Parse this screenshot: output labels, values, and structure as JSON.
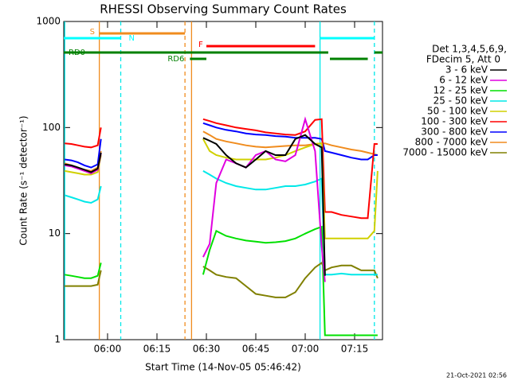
{
  "chart_data": {
    "type": "line",
    "title": "RHESSI Observing Summary Count Rates",
    "xlabel": "Start Time (14-Nov-05 05:46:42)",
    "ylabel": "Count Rate (s⁻¹ detector⁻¹)",
    "footer": "21-Oct-2021 02:56",
    "legend_header": [
      "Det 1,3,4,5,6,9,",
      "FDecim 5, Att 0"
    ],
    "log_y": true,
    "xlim": [
      "05:46:42",
      "07:23:28"
    ],
    "xticks": [
      "06:00",
      "06:15",
      "06:30",
      "06:45",
      "07:00",
      "07:15"
    ],
    "ylim": [
      1,
      1000
    ],
    "yticks": [
      1,
      10,
      100,
      1000
    ],
    "x": [
      "05:47",
      "05:49",
      "05:51",
      "05:53",
      "05:55",
      "05:57",
      "05:58",
      "06:10",
      "06:29",
      "06:31",
      "06:33",
      "06:36",
      "06:39",
      "06:42",
      "06:45",
      "06:48",
      "06:51",
      "06:54",
      "06:57",
      "07:00",
      "07:03",
      "07:05",
      "07:06",
      "07:08",
      "07:11",
      "07:14",
      "07:17",
      "07:19",
      "07:21",
      "07:22"
    ],
    "series": [
      {
        "name": "3 - 6 keV",
        "color": "#000000",
        "values": [
          45,
          44,
          42,
          40,
          38,
          41,
          58,
          null,
          80,
          75,
          70,
          55,
          46,
          42,
          50,
          60,
          55,
          55,
          78,
          85,
          70,
          65,
          4,
          null,
          null,
          null,
          null,
          null,
          null,
          null
        ]
      },
      {
        "name": "6 - 12 keV",
        "color": "#e000e0",
        "values": [
          44,
          43,
          41,
          39,
          37,
          40,
          57,
          null,
          6,
          8,
          30,
          50,
          46,
          42,
          55,
          60,
          50,
          48,
          55,
          120,
          60,
          7.5,
          3.5,
          null,
          null,
          null,
          null,
          null,
          null,
          null
        ]
      },
      {
        "name": "12 - 25 keV",
        "color": "#00e000",
        "values": [
          4.1,
          4,
          3.9,
          3.8,
          3.8,
          4,
          5.3,
          null,
          4.1,
          7,
          10.6,
          9.5,
          9,
          8.6,
          8.4,
          8.2,
          8.3,
          8.5,
          9,
          10,
          11,
          11.6,
          1.1,
          1.1,
          1.1,
          1.1,
          1.1,
          1.1,
          1.1,
          1.1
        ]
      },
      {
        "name": "25 - 50 keV",
        "color": "#00e8e8",
        "values": [
          23,
          22,
          21,
          20,
          19.5,
          21,
          28,
          null,
          39,
          36,
          33,
          30,
          28,
          27,
          26,
          26,
          27,
          28,
          28,
          29,
          31,
          33,
          4.1,
          4.1,
          4.2,
          4.1,
          4.1,
          4.1,
          4.1,
          4.1
        ]
      },
      {
        "name": "50 - 100 keV",
        "color": "#d0d000",
        "values": [
          39,
          38,
          37,
          36,
          36,
          38,
          55,
          null,
          78,
          60,
          55,
          52,
          50,
          50,
          50,
          50,
          52,
          55,
          60,
          65,
          70,
          71,
          9,
          9,
          9,
          9,
          9,
          9,
          10.6,
          39
        ]
      },
      {
        "name": "100 - 300 keV",
        "color": "#ff0000",
        "values": [
          71,
          70,
          68,
          66,
          65,
          68,
          100,
          null,
          120,
          115,
          110,
          105,
          100,
          97,
          94,
          90,
          88,
          86,
          85,
          92,
          118,
          120,
          16,
          16,
          15,
          14.5,
          14,
          14,
          70,
          70
        ]
      },
      {
        "name": "300 - 800 keV",
        "color": "#0000ff",
        "values": [
          50,
          49,
          47,
          44,
          42,
          45,
          78,
          null,
          110,
          105,
          100,
          95,
          92,
          88,
          86,
          85,
          83,
          82,
          80,
          80,
          80,
          78,
          60,
          58,
          55,
          52,
          50,
          50,
          55,
          55
        ]
      },
      {
        "name": "800 - 7000 keV",
        "color": "#f08c1e",
        "values": [
          46,
          44,
          42,
          40,
          39,
          42,
          60,
          null,
          92,
          85,
          78,
          74,
          71,
          68,
          66,
          65,
          66,
          67,
          68,
          68,
          70,
          71,
          71,
          68,
          65,
          62,
          60,
          58,
          56,
          55
        ]
      },
      {
        "name": "7000 - 15000 keV",
        "color": "#808000",
        "values": [
          3.2,
          3.2,
          3.2,
          3.2,
          3.2,
          3.3,
          4.5,
          null,
          4.9,
          4.5,
          4.1,
          3.9,
          3.8,
          3.2,
          2.7,
          2.6,
          2.5,
          2.5,
          2.8,
          3.8,
          4.8,
          5.3,
          4.5,
          4.8,
          5,
          5,
          4.5,
          4.5,
          4.5,
          3.8
        ]
      }
    ],
    "vlines": [
      {
        "x": "05:47",
        "color": "#00e8e8",
        "dashed": false
      },
      {
        "x": "05:57:30",
        "color": "#f08c1e",
        "dashed": false
      },
      {
        "x": "06:04",
        "color": "#00e8e8",
        "dashed": true
      },
      {
        "x": "06:23:30",
        "color": "#f08c1e",
        "dashed": true
      },
      {
        "x": "06:25:30",
        "color": "#f08c1e",
        "dashed": false
      },
      {
        "x": "07:04:30",
        "color": "#00e8e8",
        "dashed": false
      },
      {
        "x": "07:21",
        "color": "#00e8e8",
        "dashed": true
      }
    ],
    "flags": [
      {
        "label": "S",
        "color": "#f08c1e",
        "segments": [
          [
            "05:57:30",
            "06:23:30"
          ]
        ]
      },
      {
        "label": "N",
        "color": "#00ffff",
        "segments": [
          [
            "05:46:42",
            "06:04"
          ],
          [
            "07:04:30",
            "07:21"
          ]
        ]
      },
      {
        "label": "F",
        "color": "#ff0000",
        "segments": [
          [
            "06:30",
            "07:03"
          ]
        ]
      },
      {
        "label": "RD0",
        "color": "#008000",
        "segments": [
          [
            "05:46:42",
            "07:07"
          ],
          [
            "07:21",
            "07:23:28"
          ]
        ]
      },
      {
        "label": "RD6",
        "color": "#008000",
        "segments": [
          [
            "06:25",
            "06:30"
          ],
          [
            "07:07:30",
            "07:19"
          ]
        ]
      }
    ]
  }
}
